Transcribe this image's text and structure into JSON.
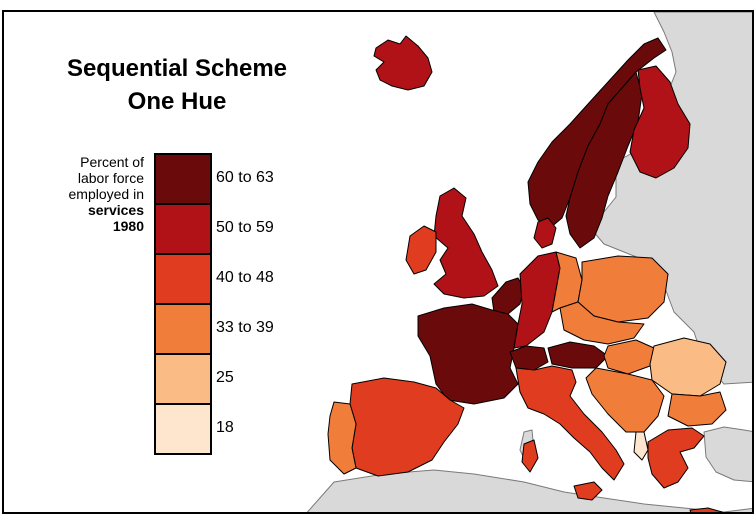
{
  "title": {
    "line1": "Sequential Scheme",
    "line2": "One Hue"
  },
  "legend": {
    "caption_line1": "Percent of",
    "caption_line2": "labor force",
    "caption_line3": "employed in",
    "caption_line4": "services",
    "caption_line5": "1980",
    "classes": [
      {
        "label": "60 to 63",
        "color": "#6b0a0b"
      },
      {
        "label": "50 to 59",
        "color": "#b01217"
      },
      {
        "label": "40 to 48",
        "color": "#e03c1f"
      },
      {
        "label": "33 to 39",
        "color": "#f17d3b"
      },
      {
        "label": "25",
        "color": "#fbbb84"
      },
      {
        "label": "18",
        "color": "#fde6cd"
      }
    ]
  },
  "colors": {
    "no_data": "#d9d9d9",
    "background": "#ffffff",
    "border": "#000000"
  }
}
